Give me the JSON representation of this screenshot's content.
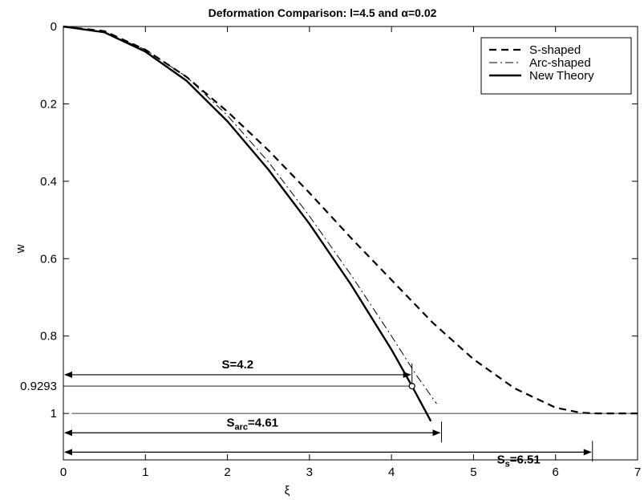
{
  "chart_data": {
    "type": "line",
    "title": "Deformation Comparison: l=4.5 and α=0.02",
    "xlabel": "ξ",
    "ylabel": "w",
    "xlim": [
      0,
      7
    ],
    "ylim": [
      0,
      1.12
    ],
    "y_inverted": true,
    "grid": false,
    "legend_position": "top-right",
    "xticks": [
      0,
      1,
      2,
      3,
      4,
      5,
      6,
      7
    ],
    "yticks": [
      0,
      0.2,
      0.4,
      0.6,
      0.8,
      0.9293,
      1
    ],
    "ytick_labels": [
      "0",
      "0.2",
      "0.4",
      "0.6",
      "0.8",
      "0.9293",
      "1"
    ],
    "series": [
      {
        "name": "S-shaped",
        "style": "dashed",
        "x": [
          0,
          0.5,
          1,
          1.5,
          2,
          2.5,
          3,
          3.5,
          4,
          4.5,
          5,
          5.5,
          6,
          6.3,
          6.51,
          7
        ],
        "y": [
          0,
          0.012,
          0.06,
          0.13,
          0.22,
          0.32,
          0.43,
          0.545,
          0.655,
          0.765,
          0.86,
          0.935,
          0.985,
          0.998,
          1.0,
          1.0
        ]
      },
      {
        "name": "Arc-shaped",
        "style": "dashdot",
        "x": [
          0,
          0.5,
          1,
          1.5,
          2,
          2.5,
          3,
          3.5,
          4,
          4.3,
          4.55
        ],
        "y": [
          0,
          0.015,
          0.06,
          0.13,
          0.23,
          0.35,
          0.49,
          0.64,
          0.8,
          0.9,
          0.975
        ]
      },
      {
        "name": "New Theory",
        "style": "solid",
        "x": [
          0,
          0.5,
          1,
          1.5,
          2,
          2.5,
          3,
          3.5,
          4,
          4.25,
          4.48
        ],
        "y": [
          0,
          0.015,
          0.065,
          0.14,
          0.245,
          0.37,
          0.51,
          0.665,
          0.835,
          0.9293,
          1.02
        ]
      }
    ],
    "marker": {
      "x": 4.25,
      "y": 0.9293,
      "shape": "circle"
    },
    "reference_lines": [
      {
        "axis": "y",
        "value": 0.9293,
        "x_from": 0,
        "x_to": 4.25
      },
      {
        "axis": "y",
        "value": 1.0,
        "x_from": 0.1,
        "x_to": 7
      }
    ],
    "annotations": [
      {
        "label_main": "S=4.2",
        "label_sub": "",
        "label_rest": "",
        "y": 0.9,
        "x_from": 0,
        "x_to": 4.25,
        "tick_x": 4.25
      },
      {
        "label_main": "S",
        "label_sub": "arc",
        "label_rest": "=4.61",
        "y": 1.05,
        "x_from": 0,
        "x_to": 4.61,
        "tick_x": 4.61
      },
      {
        "label_main": "S",
        "label_sub": "s",
        "label_rest": "=6.51",
        "y": 1.1,
        "x_from": 0,
        "x_to": 6.45,
        "tick_x": 6.45
      }
    ]
  }
}
